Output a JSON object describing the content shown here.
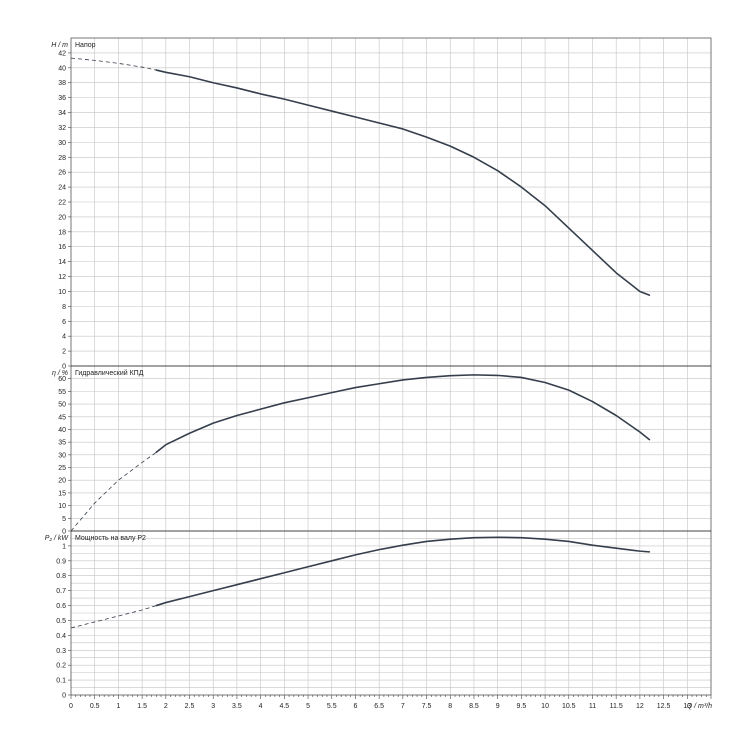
{
  "chart_data": [
    {
      "type": "line",
      "title": "Напор",
      "ylabel": "H / m",
      "xlabel": "Q / m³/h",
      "xlim": [
        0,
        13.5
      ],
      "ylim": [
        0,
        44
      ],
      "ytick_step": 2,
      "ytick_labels": [
        "0",
        "2",
        "4",
        "6",
        "8",
        "10",
        "12",
        "14",
        "16",
        "18",
        "20",
        "22",
        "24",
        "26",
        "28",
        "30",
        "32",
        "34",
        "36",
        "38",
        "40",
        "42"
      ],
      "grid": true,
      "series": [
        {
          "x": [
            0,
            0.5,
            1,
            1.5,
            1.8,
            2,
            2.5,
            3,
            3.5,
            4,
            4.5,
            5,
            5.5,
            6,
            6.5,
            7,
            7.5,
            8,
            8.5,
            9,
            9.5,
            10,
            10.5,
            11,
            11.5,
            12,
            12.2
          ],
          "y": [
            41.3,
            41.0,
            40.6,
            40.1,
            39.7,
            39.4,
            38.8,
            38.0,
            37.3,
            36.5,
            35.8,
            35.0,
            34.2,
            33.4,
            32.6,
            31.8,
            30.7,
            29.5,
            28.0,
            26.2,
            24.0,
            21.5,
            18.5,
            15.5,
            12.5,
            10.0,
            9.5
          ],
          "dashed_until_x": 1.8
        }
      ]
    },
    {
      "type": "line",
      "title": "Гидравлический КПД",
      "ylabel": "η / %",
      "xlim": [
        0,
        13.5
      ],
      "ylim": [
        0,
        65
      ],
      "ytick_step": 5,
      "ytick_labels": [
        "0",
        "5",
        "10",
        "15",
        "20",
        "25",
        "30",
        "35",
        "40",
        "45",
        "50",
        "55",
        "60"
      ],
      "grid": true,
      "series": [
        {
          "x": [
            0,
            0.5,
            1,
            1.5,
            1.8,
            2,
            2.5,
            3,
            3.5,
            4,
            4.5,
            5,
            5.5,
            6,
            6.5,
            7,
            7.5,
            8,
            8.5,
            9,
            9.5,
            10,
            10.5,
            11,
            11.5,
            12,
            12.2
          ],
          "y": [
            0,
            11,
            20,
            27,
            31,
            34,
            38.5,
            42.5,
            45.5,
            48,
            50.5,
            52.5,
            54.5,
            56.5,
            58,
            59.5,
            60.5,
            61.2,
            61.5,
            61.3,
            60.5,
            58.5,
            55.5,
            51,
            45.5,
            39,
            36
          ],
          "dashed_until_x": 1.8
        }
      ]
    },
    {
      "type": "line",
      "title": "Мощность на валу P2",
      "ylabel": "P₂ / kW",
      "xlabel": "Q / m³/h",
      "xlim": [
        0,
        13.5
      ],
      "ylim": [
        0,
        1.1
      ],
      "ytick_step": 0.05,
      "ytick_labels": [
        "0",
        "0.1",
        "0.2",
        "0.3",
        "0.4",
        "0.5",
        "0.6",
        "0.7",
        "0.8",
        "0.9",
        "1"
      ],
      "xtick_labels": [
        "0",
        "0.5",
        "1",
        "1.5",
        "2",
        "2.5",
        "3",
        "3.5",
        "4",
        "4.5",
        "5",
        "5.5",
        "6",
        "6.5",
        "7",
        "7.5",
        "8",
        "8.5",
        "9",
        "9.5",
        "10",
        "10.5",
        "11",
        "11.5",
        "12",
        "12.5",
        "13"
      ],
      "grid": true,
      "series": [
        {
          "x": [
            0,
            0.5,
            1,
            1.5,
            1.8,
            2,
            2.5,
            3,
            3.5,
            4,
            4.5,
            5,
            5.5,
            6,
            6.5,
            7,
            7.5,
            8,
            8.5,
            9,
            9.5,
            10,
            10.5,
            11,
            11.5,
            12,
            12.2
          ],
          "y": [
            0.45,
            0.49,
            0.53,
            0.57,
            0.6,
            0.62,
            0.66,
            0.7,
            0.74,
            0.78,
            0.82,
            0.86,
            0.9,
            0.94,
            0.975,
            1.005,
            1.03,
            1.045,
            1.055,
            1.058,
            1.055,
            1.045,
            1.03,
            1.005,
            0.985,
            0.965,
            0.96
          ],
          "dashed_until_x": 1.8
        }
      ]
    }
  ]
}
